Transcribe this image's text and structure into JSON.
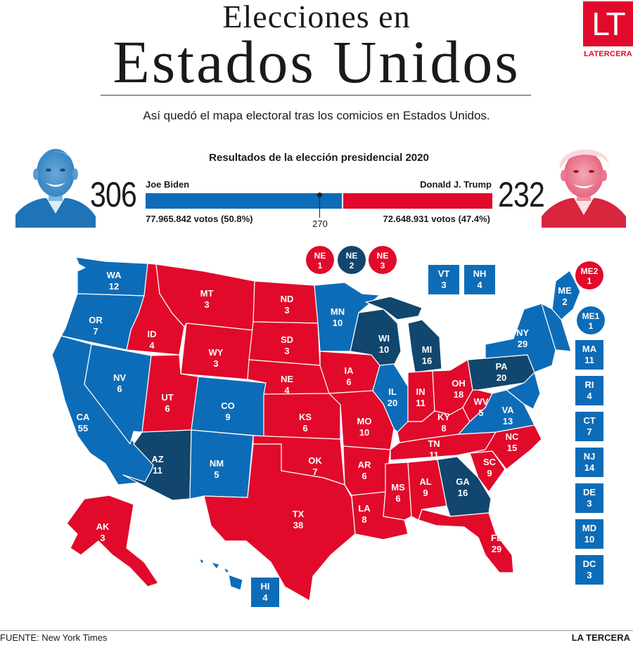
{
  "header": {
    "title_line1": "Elecciones en",
    "title_line2": "Estados Unidos",
    "subtitle": "Así quedó el mapa electoral tras los comicios en Estados Unidos.",
    "logo_letters": "LT",
    "logo_name": "LATERCERA"
  },
  "results": {
    "title": "Resultados de la elección presidencial 2020",
    "threshold": "270",
    "biden": {
      "name": "Joe Biden",
      "electoral": "306",
      "votes": "77.965.842 votos (50.8%)",
      "electoral_value": 306
    },
    "trump": {
      "name": "Donald J. Trump",
      "electoral": "232",
      "votes": "72.648.931 votos (47.4%)",
      "electoral_value": 232
    }
  },
  "colors": {
    "dem": "#0d6cb8",
    "dem_flip": "#11466e",
    "rep": "#e10a2a"
  },
  "map": {
    "states": [
      {
        "abbr": "WA",
        "ev": "12",
        "party": "dem"
      },
      {
        "abbr": "OR",
        "ev": "7",
        "party": "dem"
      },
      {
        "abbr": "CA",
        "ev": "55",
        "party": "dem"
      },
      {
        "abbr": "NV",
        "ev": "6",
        "party": "dem"
      },
      {
        "abbr": "ID",
        "ev": "4",
        "party": "rep"
      },
      {
        "abbr": "MT",
        "ev": "3",
        "party": "rep"
      },
      {
        "abbr": "WY",
        "ev": "3",
        "party": "rep"
      },
      {
        "abbr": "UT",
        "ev": "6",
        "party": "rep"
      },
      {
        "abbr": "CO",
        "ev": "9",
        "party": "dem"
      },
      {
        "abbr": "AZ",
        "ev": "11",
        "party": "dem_flip"
      },
      {
        "abbr": "NM",
        "ev": "5",
        "party": "dem"
      },
      {
        "abbr": "ND",
        "ev": "3",
        "party": "rep"
      },
      {
        "abbr": "SD",
        "ev": "3",
        "party": "rep"
      },
      {
        "abbr": "NE",
        "ev": "4",
        "party": "rep"
      },
      {
        "abbr": "KS",
        "ev": "6",
        "party": "rep"
      },
      {
        "abbr": "OK",
        "ev": "7",
        "party": "rep"
      },
      {
        "abbr": "TX",
        "ev": "38",
        "party": "rep"
      },
      {
        "abbr": "MN",
        "ev": "10",
        "party": "dem"
      },
      {
        "abbr": "IA",
        "ev": "6",
        "party": "rep"
      },
      {
        "abbr": "MO",
        "ev": "10",
        "party": "rep"
      },
      {
        "abbr": "AR",
        "ev": "6",
        "party": "rep"
      },
      {
        "abbr": "LA",
        "ev": "8",
        "party": "rep"
      },
      {
        "abbr": "WI",
        "ev": "10",
        "party": "dem_flip"
      },
      {
        "abbr": "IL",
        "ev": "20",
        "party": "dem"
      },
      {
        "abbr": "MI",
        "ev": "16",
        "party": "dem_flip"
      },
      {
        "abbr": "IN",
        "ev": "11",
        "party": "rep"
      },
      {
        "abbr": "OH",
        "ev": "18",
        "party": "rep"
      },
      {
        "abbr": "KY",
        "ev": "8",
        "party": "rep"
      },
      {
        "abbr": "TN",
        "ev": "11",
        "party": "rep"
      },
      {
        "abbr": "MS",
        "ev": "6",
        "party": "rep"
      },
      {
        "abbr": "AL",
        "ev": "9",
        "party": "rep"
      },
      {
        "abbr": "GA",
        "ev": "16",
        "party": "dem_flip"
      },
      {
        "abbr": "FL",
        "ev": "29",
        "party": "rep"
      },
      {
        "abbr": "SC",
        "ev": "9",
        "party": "rep"
      },
      {
        "abbr": "NC",
        "ev": "15",
        "party": "rep"
      },
      {
        "abbr": "WV",
        "ev": "5",
        "party": "rep"
      },
      {
        "abbr": "VA",
        "ev": "13",
        "party": "dem"
      },
      {
        "abbr": "PA",
        "ev": "20",
        "party": "dem_flip"
      },
      {
        "abbr": "NY",
        "ev": "29",
        "party": "dem"
      },
      {
        "abbr": "ME",
        "ev": "2",
        "party": "dem"
      },
      {
        "abbr": "AK",
        "ev": "3",
        "party": "rep"
      }
    ],
    "boxes": [
      {
        "abbr": "VT",
        "ev": "3",
        "party": "dem"
      },
      {
        "abbr": "NH",
        "ev": "4",
        "party": "dem"
      },
      {
        "abbr": "MA",
        "ev": "11",
        "party": "dem"
      },
      {
        "abbr": "RI",
        "ev": "4",
        "party": "dem"
      },
      {
        "abbr": "CT",
        "ev": "7",
        "party": "dem"
      },
      {
        "abbr": "NJ",
        "ev": "14",
        "party": "dem"
      },
      {
        "abbr": "DE",
        "ev": "3",
        "party": "dem"
      },
      {
        "abbr": "MD",
        "ev": "10",
        "party": "dem"
      },
      {
        "abbr": "DC",
        "ev": "3",
        "party": "dem"
      },
      {
        "abbr": "HI",
        "ev": "4",
        "party": "dem"
      }
    ],
    "circles": [
      {
        "abbr": "NE",
        "ev": "1",
        "party": "rep"
      },
      {
        "abbr": "NE",
        "ev": "2",
        "party": "dem_flip"
      },
      {
        "abbr": "NE",
        "ev": "3",
        "party": "rep"
      },
      {
        "abbr": "ME2",
        "ev": "1",
        "party": "rep"
      },
      {
        "abbr": "ME1",
        "ev": "1",
        "party": "dem"
      }
    ]
  },
  "footer": {
    "source": "FUENTE: New York Times",
    "brand": "LA TERCERA"
  }
}
